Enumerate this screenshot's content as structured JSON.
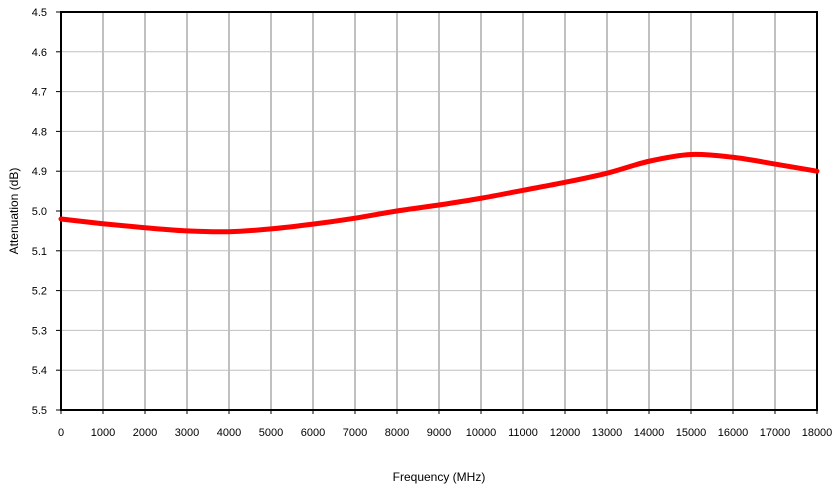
{
  "chart_data": {
    "type": "line",
    "title": "",
    "xlabel": "Frequency (MHz)",
    "ylabel": "Attenuation (dB)",
    "xlim": [
      0,
      18000
    ],
    "ylim": [
      4.5,
      5.5
    ],
    "y_inverted": true,
    "x_ticks": [
      0,
      1000,
      2000,
      3000,
      4000,
      5000,
      6000,
      7000,
      8000,
      9000,
      10000,
      11000,
      12000,
      13000,
      14000,
      15000,
      16000,
      17000,
      18000
    ],
    "y_ticks": [
      4.5,
      4.6,
      4.7,
      4.8,
      4.9,
      5.0,
      5.1,
      5.2,
      5.3,
      5.4,
      5.5
    ],
    "y_tick_labels": [
      "4.5",
      "4.6",
      "4.7",
      "4.8",
      "4.9",
      "5.0",
      "5.1",
      "5.2",
      "5.3",
      "5.4",
      "5.5"
    ],
    "grid": {
      "vertical": true,
      "horizontal": true
    },
    "legend": "none",
    "series": [
      {
        "color": "#ff0000",
        "x": [
          0,
          1000,
          2000,
          3000,
          4000,
          5000,
          6000,
          7000,
          8000,
          9000,
          10000,
          11000,
          12000,
          13000,
          14000,
          15000,
          16000,
          17000,
          18000
        ],
        "y": [
          5.02,
          5.032,
          5.042,
          5.05,
          5.052,
          5.045,
          5.033,
          5.018,
          5.0,
          4.985,
          4.968,
          4.948,
          4.928,
          4.905,
          4.875,
          4.858,
          4.865,
          4.882,
          4.9
        ]
      }
    ]
  }
}
